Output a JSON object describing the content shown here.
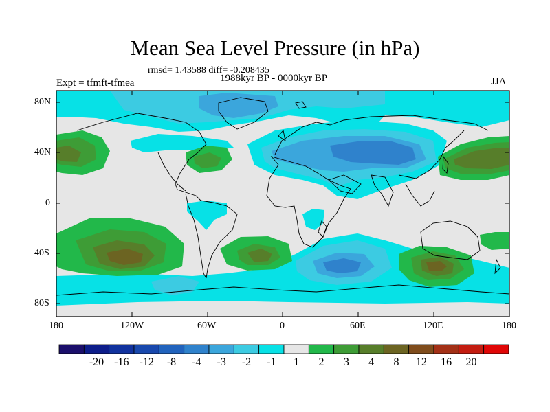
{
  "title": "Mean Sea Level Pressure (in hPa)",
  "stats": "rmsd= 1.43588 diff= -0.208435",
  "experiment": "Expt = tfmft-tfmea",
  "period": "1988kyr BP - 0000kyr BP",
  "season": "JJA",
  "lat_labels": [
    "80N",
    "40N",
    "0",
    "40S",
    "80S"
  ],
  "lon_labels": [
    "180",
    "120W",
    "60W",
    "0",
    "60E",
    "120E",
    "180"
  ],
  "colorbar": {
    "labels": [
      "-20",
      "-16",
      "-12",
      "-8",
      "-4",
      "-3",
      "-2",
      "-1",
      "1",
      "2",
      "3",
      "4",
      "8",
      "12",
      "16",
      "20"
    ],
    "colors": [
      "#1b0f6b",
      "#0d1d8a",
      "#11329e",
      "#1848ad",
      "#2163bd",
      "#2f82cc",
      "#3ba6dc",
      "#3ccbe2",
      "#07e1e6",
      "#e6e6e6",
      "#22b84a",
      "#3e9c36",
      "#577e2a",
      "#6c6422",
      "#7f4c1c",
      "#a33016",
      "#c31c10",
      "#e00606"
    ]
  },
  "map_data": {
    "variable": "Mean Sea Level Pressure difference",
    "units": "hPa",
    "lat_range": [
      -90,
      90
    ],
    "lon_range": [
      -180,
      180
    ]
  }
}
